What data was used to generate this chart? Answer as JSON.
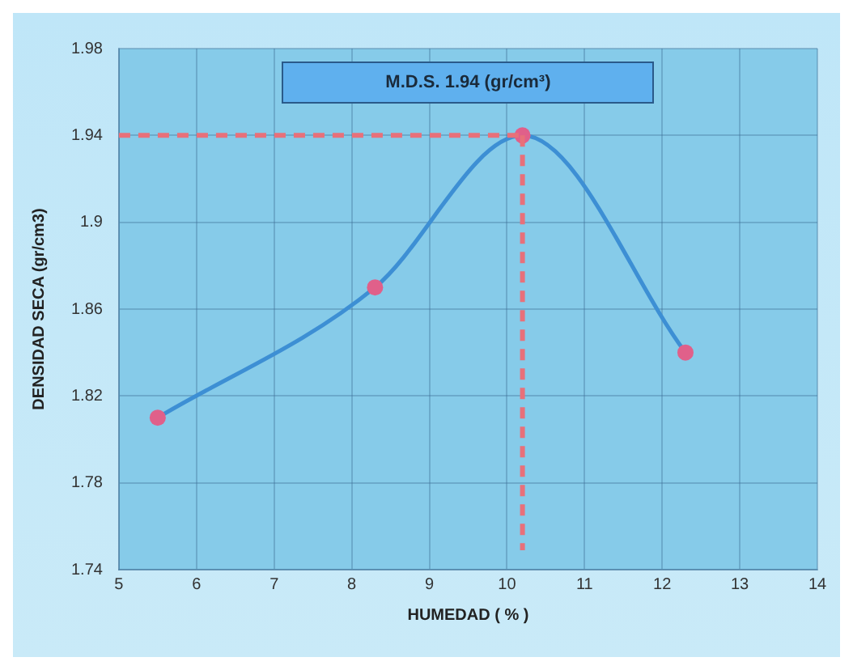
{
  "chart_data": {
    "type": "line",
    "xlabel": "HUMEDAD ( % )",
    "ylabel": "DENSIDAD SECA (gr/cm3)",
    "annotations": [
      "M.D.S. 1.94 (gr/cm³)"
    ],
    "x": [
      5.5,
      8.3,
      10.2,
      12.3
    ],
    "series": [
      {
        "color": "#3d8fd4",
        "colors": [
          "#e0608a",
          "#e0608a",
          "#e0608a",
          "#e0608a"
        ],
        "values": [
          1.81,
          1.87,
          1.94,
          1.84
        ]
      }
    ],
    "xlim": [
      5,
      14
    ],
    "xticks": [
      5,
      6,
      7,
      8,
      9,
      10,
      11,
      12,
      13,
      14
    ],
    "ylim": [
      1.74,
      1.98
    ],
    "yticks": [
      1.74,
      1.78,
      1.82,
      1.86,
      1.9,
      1.94,
      1.98
    ],
    "ref_lines": [
      {
        "axis": "y",
        "value": 1.94,
        "color": "#e8707a",
        "line_style": "dashed"
      },
      {
        "axis": "x",
        "value": 10.2,
        "color": "#e8707a",
        "line_style": "dashed"
      }
    ],
    "grid": true,
    "marker": "circle",
    "line_style": "solid"
  }
}
